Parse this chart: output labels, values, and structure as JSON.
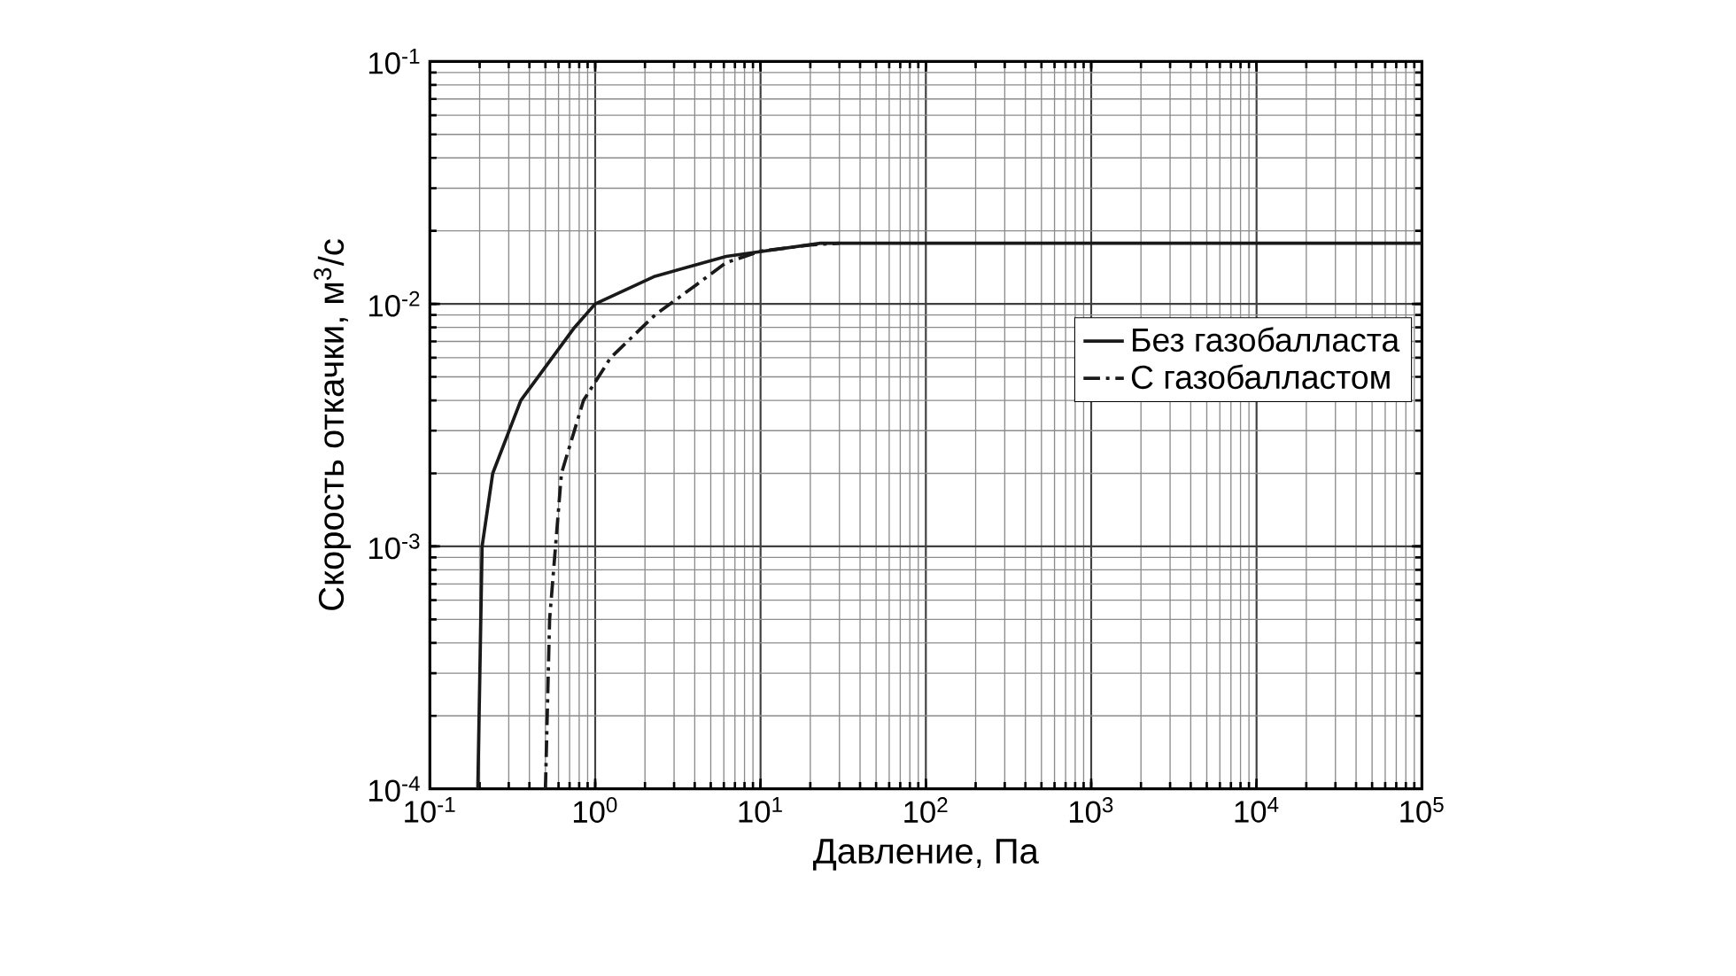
{
  "chart_data": {
    "type": "line",
    "xlabel": "Давление, Па",
    "ylabel": "Скорость откачки, м$^{3}$/с",
    "log": "xy",
    "grid": true,
    "legend": "right",
    "xlim": [
      0.1,
      100000
    ],
    "ylim": [
      0.0001,
      0.1
    ],
    "xticks": [
      {
        "value": 0.1,
        "label": "10$^{-1}$"
      },
      {
        "value": 1,
        "label": "10$^{0}$"
      },
      {
        "value": 10,
        "label": "10$^{1}$"
      },
      {
        "value": 100,
        "label": "10$^{2}$"
      },
      {
        "value": 1000,
        "label": "10$^{3}$"
      },
      {
        "value": 10000,
        "label": "10$^{4}$"
      },
      {
        "value": 100000,
        "label": "10$^{5}$"
      }
    ],
    "yticks": [
      {
        "value": 0.0001,
        "label": "10$^{-4}$"
      },
      {
        "value": 0.001,
        "label": "10$^{-3}$"
      },
      {
        "value": 0.01,
        "label": "10$^{-2}$"
      },
      {
        "value": 0.1,
        "label": "10$^{-1}$"
      }
    ],
    "series": [
      {
        "name": "Без газобалласта",
        "color": "#1a1a1a",
        "line_style": "solid",
        "x": [
          0.195,
          0.207,
          0.24,
          0.355,
          0.75,
          1.0,
          2.3,
          6.2,
          23,
          100,
          1000,
          10000,
          100000
        ],
        "values": [
          0.0001,
          0.001,
          0.002,
          0.004,
          0.008,
          0.01,
          0.013,
          0.0157,
          0.0178,
          0.0178,
          0.0178,
          0.0178,
          0.0178
        ]
      },
      {
        "name": "С газобалластом",
        "color": "#1a1a1a",
        "line_style": "dashdot",
        "x": [
          0.5,
          0.53,
          0.625,
          0.85,
          1.24,
          2.3,
          4.1,
          6.2,
          10,
          20,
          30
        ],
        "values": [
          0.0001,
          0.0005,
          0.002,
          0.004,
          0.006,
          0.009,
          0.012,
          0.0148,
          0.0165,
          0.0175,
          0.0178
        ]
      }
    ]
  }
}
